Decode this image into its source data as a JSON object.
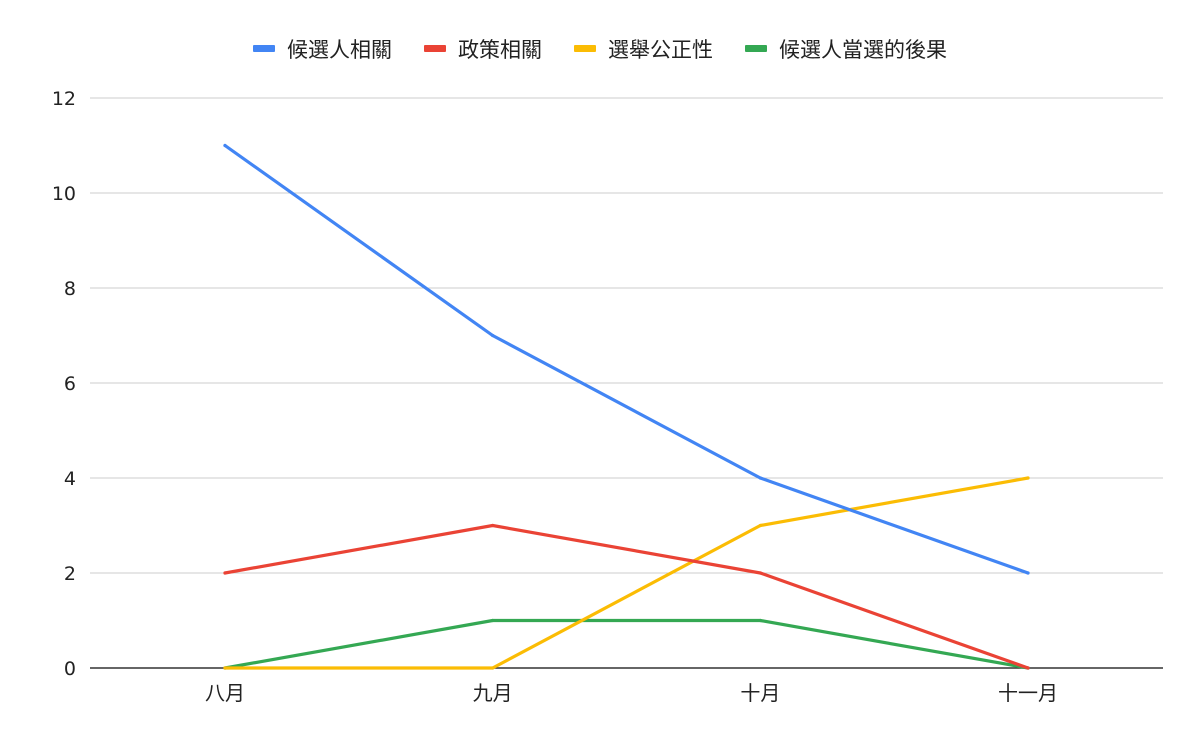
{
  "chart_data": {
    "type": "line",
    "title": "",
    "xlabel": "",
    "ylabel": "",
    "categories": [
      "八月",
      "九月",
      "十月",
      "十一月"
    ],
    "ylim": [
      0,
      12
    ],
    "yticks": [
      0,
      2,
      4,
      6,
      8,
      10,
      12
    ],
    "grid": true,
    "legend_position": "top",
    "series": [
      {
        "name": "候選人相關",
        "color": "#4285F4",
        "values": [
          11,
          7,
          4,
          2
        ]
      },
      {
        "name": "政策相關",
        "color": "#EA4335",
        "values": [
          2,
          3,
          2,
          0
        ]
      },
      {
        "name": "選舉公正性",
        "color": "#FBBC04",
        "values": [
          0,
          0,
          3,
          4
        ]
      },
      {
        "name": "候選人當選的後果",
        "color": "#34A853",
        "values": [
          0,
          1,
          1,
          0
        ]
      }
    ]
  }
}
